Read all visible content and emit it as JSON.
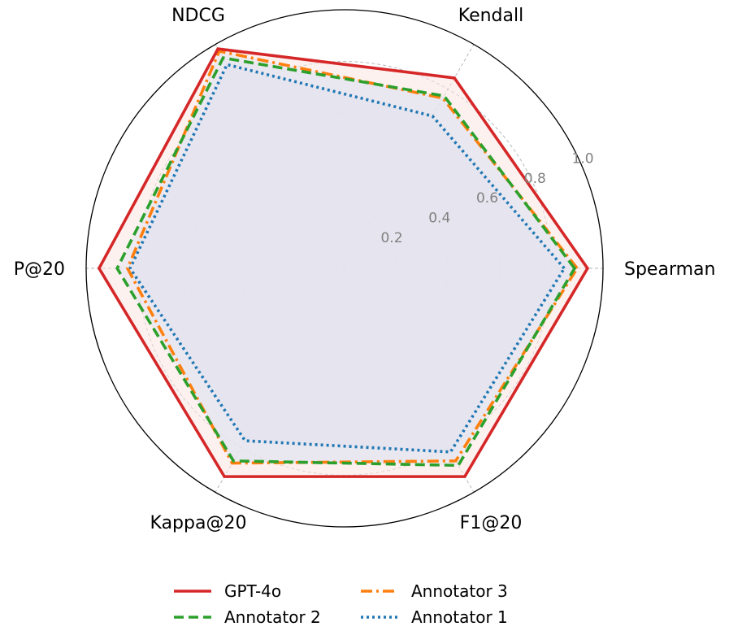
{
  "chart_data": {
    "type": "radar",
    "axes": [
      "Spearman",
      "Kendall",
      "NDCG",
      "P@20",
      "Kappa@20",
      "F1@20"
    ],
    "rlim": [
      0,
      1.0
    ],
    "ticks": [
      {
        "value": 0.2,
        "label": "0.2"
      },
      {
        "value": 0.4,
        "label": "0.4"
      },
      {
        "value": 0.6,
        "label": "0.6"
      },
      {
        "value": 0.8,
        "label": "0.8"
      },
      {
        "value": 1.0,
        "label": "1.0"
      }
    ],
    "grid": true,
    "legend_position": "bottom",
    "series": [
      {
        "name": "GPT-4o",
        "color": "#d62728",
        "style": "solid",
        "fill": "#fbe5e4",
        "values": [
          0.94,
          0.85,
          0.98,
          0.95,
          0.93,
          0.93
        ]
      },
      {
        "name": "Annotator 2",
        "color": "#2ca02c",
        "style": "dashed",
        "fill": "#e4e4ee",
        "values": [
          0.89,
          0.77,
          0.94,
          0.88,
          0.86,
          0.88
        ]
      },
      {
        "name": "Annotator 3",
        "color": "#ff7f0e",
        "style": "dashdot",
        "fill": "#e4e4ee",
        "values": [
          0.9,
          0.76,
          0.97,
          0.84,
          0.87,
          0.86
        ]
      },
      {
        "name": "Annotator 1",
        "color": "#1f77b4",
        "style": "dotted",
        "fill": "#e4e4ee",
        "values": [
          0.85,
          0.68,
          0.91,
          0.83,
          0.77,
          0.82
        ]
      }
    ],
    "legend_order": [
      "GPT-4o",
      "Annotator 3",
      "Annotator 2",
      "Annotator 1"
    ]
  }
}
